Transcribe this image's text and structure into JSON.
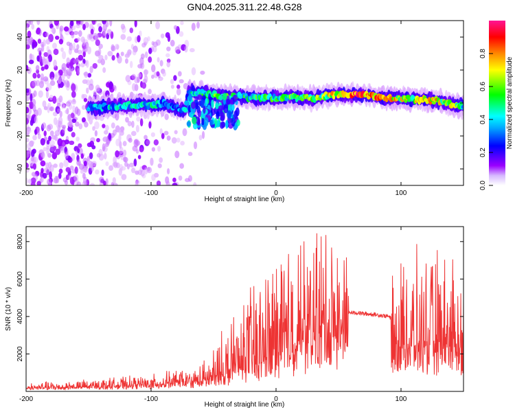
{
  "figure": {
    "title": "GN04.2025.311.22.48.G28"
  },
  "chart_data": [
    {
      "type": "heatmap",
      "xlabel": "Height of straight line (km)",
      "ylabel": "Frequency (Hz)",
      "xlim": [
        -200,
        150
      ],
      "ylim": [
        -50,
        50
      ],
      "x_ticks": [
        -200,
        -100,
        0,
        100
      ],
      "y_ticks": [
        -40,
        -20,
        0,
        20,
        40
      ],
      "colorbar": {
        "label": "Normalized spectral amplitude",
        "range": [
          0,
          1
        ],
        "ticks": [
          0.0,
          0.2,
          0.4,
          0.6,
          0.8
        ],
        "tick_labels": [
          "0.0",
          "0.2",
          "0.4",
          "0.6",
          "0.8"
        ],
        "colormap": [
          "#ffffff",
          "#9a00ff",
          "#0000ff",
          "#00ffff",
          "#00ff00",
          "#ffff00",
          "#ff8000",
          "#ff0000",
          "#ff1493"
        ]
      },
      "ridge": {
        "x": [
          -150,
          -130,
          -110,
          -100,
          -90,
          -80,
          -73,
          -70,
          -60,
          -50,
          -40,
          -30,
          -20,
          -10,
          0,
          10,
          20,
          30,
          40,
          50,
          60,
          70,
          80,
          90,
          100,
          110,
          120,
          130,
          140,
          150
        ],
        "y": [
          -3,
          -2,
          -1,
          -2,
          0,
          -3,
          -5,
          7,
          6,
          5,
          4,
          4,
          3,
          3,
          3,
          4,
          3,
          3,
          4,
          5,
          5,
          5,
          4,
          3,
          3,
          2,
          2,
          1,
          -1,
          -2
        ],
        "amplitude": [
          0.35,
          0.4,
          0.4,
          0.45,
          0.35,
          0.3,
          0.35,
          0.4,
          0.45,
          0.5,
          0.55,
          0.5,
          0.5,
          0.5,
          0.5,
          0.55,
          0.5,
          0.55,
          0.6,
          0.8,
          0.9,
          0.85,
          0.8,
          0.75,
          0.7,
          0.65,
          0.7,
          0.7,
          0.6,
          0.5
        ]
      },
      "grid": false
    },
    {
      "type": "line",
      "xlabel": "Height of straight line (km)",
      "ylabel": "SNR (10 * v/v)",
      "xlim": [
        -200,
        150
      ],
      "ylim": [
        0,
        8800
      ],
      "x_ticks": [
        -200,
        -100,
        0,
        100
      ],
      "y_ticks": [
        2000,
        4000,
        6000,
        8000
      ],
      "color": "#ee3333",
      "series": [
        {
          "x": [
            -200,
            -180,
            -160,
            -140,
            -120,
            -100,
            -90,
            -80,
            -70,
            -60,
            -50,
            -40,
            -30,
            -20,
            -10,
            0,
            10,
            20,
            30,
            40,
            50,
            58,
            65,
            70,
            80,
            90,
            95,
            100,
            110,
            120,
            130,
            140,
            150
          ],
          "y": [
            250,
            280,
            300,
            350,
            420,
            480,
            550,
            600,
            650,
            700,
            850,
            1100,
            1400,
            1900,
            2200,
            2600,
            3000,
            3400,
            3700,
            3900,
            4100,
            4200,
            4200,
            4150,
            4100,
            4000,
            3700,
            3500,
            3300,
            3200,
            3100,
            3000,
            3000
          ],
          "peak": [
            400,
            500,
            550,
            650,
            700,
            800,
            900,
            1100,
            1000,
            1400,
            2200,
            3500,
            4500,
            5500,
            6300,
            7000,
            7700,
            8000,
            8500,
            8700,
            8000,
            6500,
            4400,
            4300,
            4350,
            4300,
            5400,
            6500,
            6800,
            7000,
            7200,
            7000,
            6000
          ]
        }
      ],
      "grid": false
    }
  ]
}
